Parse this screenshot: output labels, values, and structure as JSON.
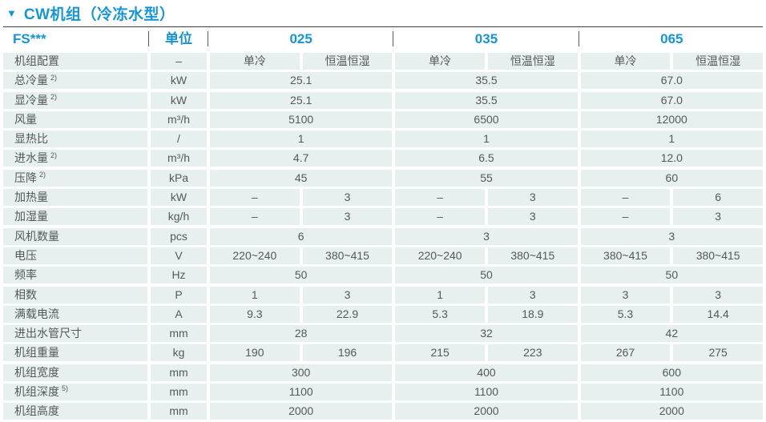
{
  "page": {
    "title_marker": "▼",
    "title": "CW机组（冷冻水型）"
  },
  "colors": {
    "accent_blue": "#1695d5",
    "cell_background": "#e8efef",
    "body_text": "#55585a"
  },
  "table": {
    "header": {
      "model_series": "FS***",
      "unit_label": "单位",
      "models": [
        "025",
        "035",
        "065"
      ]
    },
    "rows": [
      {
        "label": "机组配置",
        "unit": "–",
        "cells": [
          {
            "t": "单冷",
            "s": 1
          },
          {
            "t": "恒温恒湿",
            "s": 1
          },
          {
            "t": "单冷",
            "s": 1
          },
          {
            "t": "恒温恒湿",
            "s": 1
          },
          {
            "t": "单冷",
            "s": 1
          },
          {
            "t": "恒温恒湿",
            "s": 1
          }
        ]
      },
      {
        "label": "总冷量",
        "sup": "2)",
        "unit": "kW",
        "cells": [
          {
            "t": "25.1",
            "s": 2
          },
          {
            "t": "35.5",
            "s": 2
          },
          {
            "t": "67.0",
            "s": 2
          }
        ]
      },
      {
        "label": "显冷量",
        "sup": "2)",
        "unit": "kW",
        "cells": [
          {
            "t": "25.1",
            "s": 2
          },
          {
            "t": "35.5",
            "s": 2
          },
          {
            "t": "67.0",
            "s": 2
          }
        ]
      },
      {
        "label": "风量",
        "unit": "m³/h",
        "cells": [
          {
            "t": "5100",
            "s": 2
          },
          {
            "t": "6500",
            "s": 2
          },
          {
            "t": "12000",
            "s": 2
          }
        ]
      },
      {
        "label": "显热比",
        "unit": "/",
        "cells": [
          {
            "t": "1",
            "s": 2
          },
          {
            "t": "1",
            "s": 2
          },
          {
            "t": "1",
            "s": 2
          }
        ]
      },
      {
        "label": "进水量",
        "sup": "2)",
        "unit": "m³/h",
        "cells": [
          {
            "t": "4.7",
            "s": 2
          },
          {
            "t": "6.5",
            "s": 2
          },
          {
            "t": "12.0",
            "s": 2
          }
        ]
      },
      {
        "label": "压降",
        "sup": "2)",
        "unit": "kPa",
        "cells": [
          {
            "t": "45",
            "s": 2
          },
          {
            "t": "55",
            "s": 2
          },
          {
            "t": "60",
            "s": 2
          }
        ]
      },
      {
        "label": "加热量",
        "unit": "kW",
        "cells": [
          {
            "t": "–",
            "s": 1
          },
          {
            "t": "3",
            "s": 1
          },
          {
            "t": "–",
            "s": 1
          },
          {
            "t": "3",
            "s": 1
          },
          {
            "t": "–",
            "s": 1
          },
          {
            "t": "6",
            "s": 1
          }
        ]
      },
      {
        "label": "加湿量",
        "unit": "kg/h",
        "cells": [
          {
            "t": "–",
            "s": 1
          },
          {
            "t": "3",
            "s": 1
          },
          {
            "t": "–",
            "s": 1
          },
          {
            "t": "3",
            "s": 1
          },
          {
            "t": "–",
            "s": 1
          },
          {
            "t": "3",
            "s": 1
          }
        ]
      },
      {
        "label": "风机数量",
        "unit": "pcs",
        "cells": [
          {
            "t": "6",
            "s": 2
          },
          {
            "t": "3",
            "s": 2
          },
          {
            "t": "3",
            "s": 2
          }
        ]
      },
      {
        "label": "电压",
        "unit": "V",
        "cells": [
          {
            "t": "220~240",
            "s": 1
          },
          {
            "t": "380~415",
            "s": 1
          },
          {
            "t": "220~240",
            "s": 1
          },
          {
            "t": "380~415",
            "s": 1
          },
          {
            "t": "380~415",
            "s": 1
          },
          {
            "t": "380~415",
            "s": 1
          }
        ]
      },
      {
        "label": "频率",
        "unit": "Hz",
        "cells": [
          {
            "t": "50",
            "s": 2
          },
          {
            "t": "50",
            "s": 2
          },
          {
            "t": "50",
            "s": 2
          }
        ]
      },
      {
        "label": "相数",
        "unit": "P",
        "cells": [
          {
            "t": "1",
            "s": 1
          },
          {
            "t": "3",
            "s": 1
          },
          {
            "t": "1",
            "s": 1
          },
          {
            "t": "3",
            "s": 1
          },
          {
            "t": "3",
            "s": 1
          },
          {
            "t": "3",
            "s": 1
          }
        ]
      },
      {
        "label": "满载电流",
        "unit": "A",
        "cells": [
          {
            "t": "9.3",
            "s": 1
          },
          {
            "t": "22.9",
            "s": 1
          },
          {
            "t": "5.3",
            "s": 1
          },
          {
            "t": "18.9",
            "s": 1
          },
          {
            "t": "5.3",
            "s": 1
          },
          {
            "t": "14.4",
            "s": 1
          }
        ]
      },
      {
        "label": "进出水管尺寸",
        "unit": "mm",
        "cells": [
          {
            "t": "28",
            "s": 2
          },
          {
            "t": "32",
            "s": 2
          },
          {
            "t": "42",
            "s": 2
          }
        ]
      },
      {
        "label": "机组重量",
        "unit": "kg",
        "cells": [
          {
            "t": "190",
            "s": 1
          },
          {
            "t": "196",
            "s": 1
          },
          {
            "t": "215",
            "s": 1
          },
          {
            "t": "223",
            "s": 1
          },
          {
            "t": "267",
            "s": 1
          },
          {
            "t": "275",
            "s": 1
          }
        ]
      },
      {
        "label": "机组宽度",
        "unit": "mm",
        "cells": [
          {
            "t": "300",
            "s": 2
          },
          {
            "t": "400",
            "s": 2
          },
          {
            "t": "600",
            "s": 2
          }
        ]
      },
      {
        "label": "机组深度",
        "sup": "5)",
        "unit": "mm",
        "cells": [
          {
            "t": "1100",
            "s": 2
          },
          {
            "t": "1100",
            "s": 2
          },
          {
            "t": "1100",
            "s": 2
          }
        ]
      },
      {
        "label": "机组高度",
        "unit": "mm",
        "cells": [
          {
            "t": "2000",
            "s": 2
          },
          {
            "t": "2000",
            "s": 2
          },
          {
            "t": "2000",
            "s": 2
          }
        ]
      }
    ]
  }
}
